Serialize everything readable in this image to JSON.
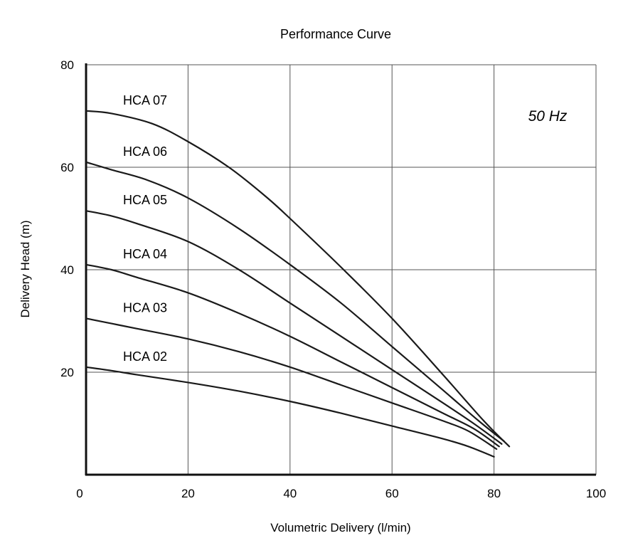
{
  "chart_data": {
    "type": "line",
    "title": "Performance Curve",
    "xlabel": "Volumetric Delivery (l/min)",
    "ylabel": "Delivery Head (m)",
    "xlim": [
      0,
      100
    ],
    "ylim": [
      0,
      80
    ],
    "x_ticks": [
      "0",
      "20",
      "40",
      "60",
      "80",
      "100"
    ],
    "y_ticks": [
      "20",
      "40",
      "60",
      "80"
    ],
    "x_tick_values": [
      0,
      20,
      40,
      60,
      80,
      100
    ],
    "y_tick_values": [
      20,
      40,
      60,
      80
    ],
    "grid": true,
    "annotation": "50 Hz",
    "series": [
      {
        "name": "HCA 07",
        "x": [
          0,
          5,
          13,
          20,
          28,
          35,
          40,
          50,
          60,
          70,
          78,
          83
        ],
        "y": [
          71,
          70.5,
          68.5,
          65,
          60,
          54.5,
          50,
          40.5,
          30.5,
          19.5,
          10.5,
          5.5
        ]
      },
      {
        "name": "HCA 06",
        "x": [
          0,
          5,
          12,
          20,
          30,
          40,
          50,
          60,
          70,
          77,
          82
        ],
        "y": [
          61,
          59.5,
          57.5,
          54,
          48,
          41,
          33.5,
          25,
          16.5,
          10.5,
          6.5
        ]
      },
      {
        "name": "HCA 05",
        "x": [
          0,
          5,
          10,
          20,
          30,
          40,
          50,
          60,
          70,
          76,
          81.5
        ],
        "y": [
          51.5,
          50.5,
          49,
          45.5,
          40,
          33.5,
          27,
          20.5,
          14,
          10,
          6
        ]
      },
      {
        "name": "HCA 04",
        "x": [
          0,
          5,
          10,
          20,
          30,
          40,
          50,
          60,
          70,
          76,
          81
        ],
        "y": [
          41,
          40,
          38.5,
          35.5,
          31.5,
          27,
          22,
          17,
          12,
          9,
          5.5
        ]
      },
      {
        "name": "HCA 03",
        "x": [
          0,
          5,
          10,
          20,
          30,
          40,
          50,
          60,
          70,
          75,
          80.5
        ],
        "y": [
          30.5,
          29.5,
          28.5,
          26.5,
          24,
          21,
          17.5,
          14,
          10.5,
          8.5,
          5
        ]
      },
      {
        "name": "HCA 02",
        "x": [
          0,
          5,
          10,
          20,
          30,
          40,
          50,
          60,
          70,
          75,
          80
        ],
        "y": [
          21,
          20.3,
          19.5,
          18,
          16.3,
          14.3,
          12,
          9.5,
          7,
          5.5,
          3.5
        ]
      }
    ]
  }
}
